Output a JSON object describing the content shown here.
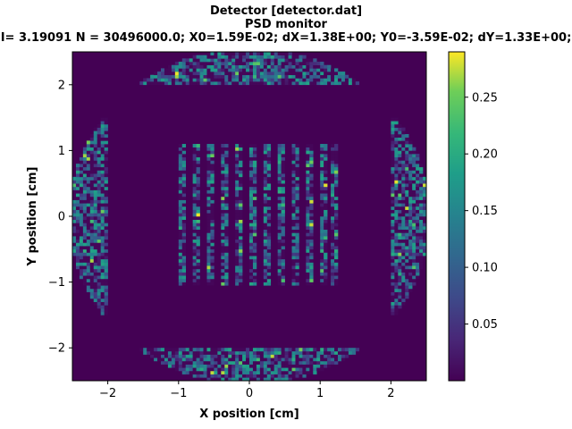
{
  "chart_data": {
    "type": "heatmap",
    "title_lines": [
      "Detector [detector.dat]",
      "PSD monitor",
      "I= 3.19091 N = 30496000.0; X0=1.59E-02; dX=1.38E+00; Y0=-3.59E-02; dY=1.33E+00;"
    ],
    "xlabel": "X position [cm]",
    "ylabel": "Y position [cm]",
    "xlim": [
      -2.5,
      2.5
    ],
    "ylim": [
      -2.5,
      2.5
    ],
    "xticks": [
      -2,
      -1,
      0,
      1,
      2
    ],
    "yticks": [
      -2,
      -1,
      0,
      1,
      2
    ],
    "xtick_labels": [
      "−2",
      "−1",
      "0",
      "1",
      "2"
    ],
    "ytick_labels": [
      "−2",
      "−1",
      "0",
      "1",
      "2"
    ],
    "colorbar": {
      "range": [
        0,
        0.29
      ],
      "ticks": [
        0.05,
        0.1,
        0.15,
        0.2,
        0.25
      ],
      "tick_labels": [
        "0.05",
        "0.10",
        "0.15",
        "0.20",
        "0.25"
      ],
      "colormap": "viridis"
    },
    "regions": {
      "center_block": {
        "x": [
          -1.0,
          1.25
        ],
        "y": [
          -1.05,
          1.1
        ],
        "stripe_centers_x": [
          -0.95,
          -0.75,
          -0.55,
          -0.35,
          -0.15,
          0.05,
          0.25,
          0.45,
          0.65,
          0.85,
          1.05,
          1.2
        ],
        "stripe_halfwidth": 0.055
      },
      "top_arc": {
        "x": [
          -1.55,
          1.55
        ],
        "y": [
          2.0,
          2.5
        ],
        "circle_radius": 2.55
      },
      "bottom_arc": {
        "x": [
          -1.55,
          1.55
        ],
        "y": [
          -2.5,
          -2.0
        ],
        "circle_radius": 2.55
      },
      "left_arc": {
        "x": [
          -2.5,
          -2.0
        ],
        "y": [
          -1.5,
          1.5
        ],
        "circle_radius": 2.55
      },
      "right_arc": {
        "x": [
          2.0,
          2.5
        ],
        "y": [
          -1.5,
          1.5
        ],
        "circle_radius": 2.55
      }
    },
    "grid": false,
    "background_value": 0.0
  },
  "colors": {
    "background_cell": "#440154"
  }
}
